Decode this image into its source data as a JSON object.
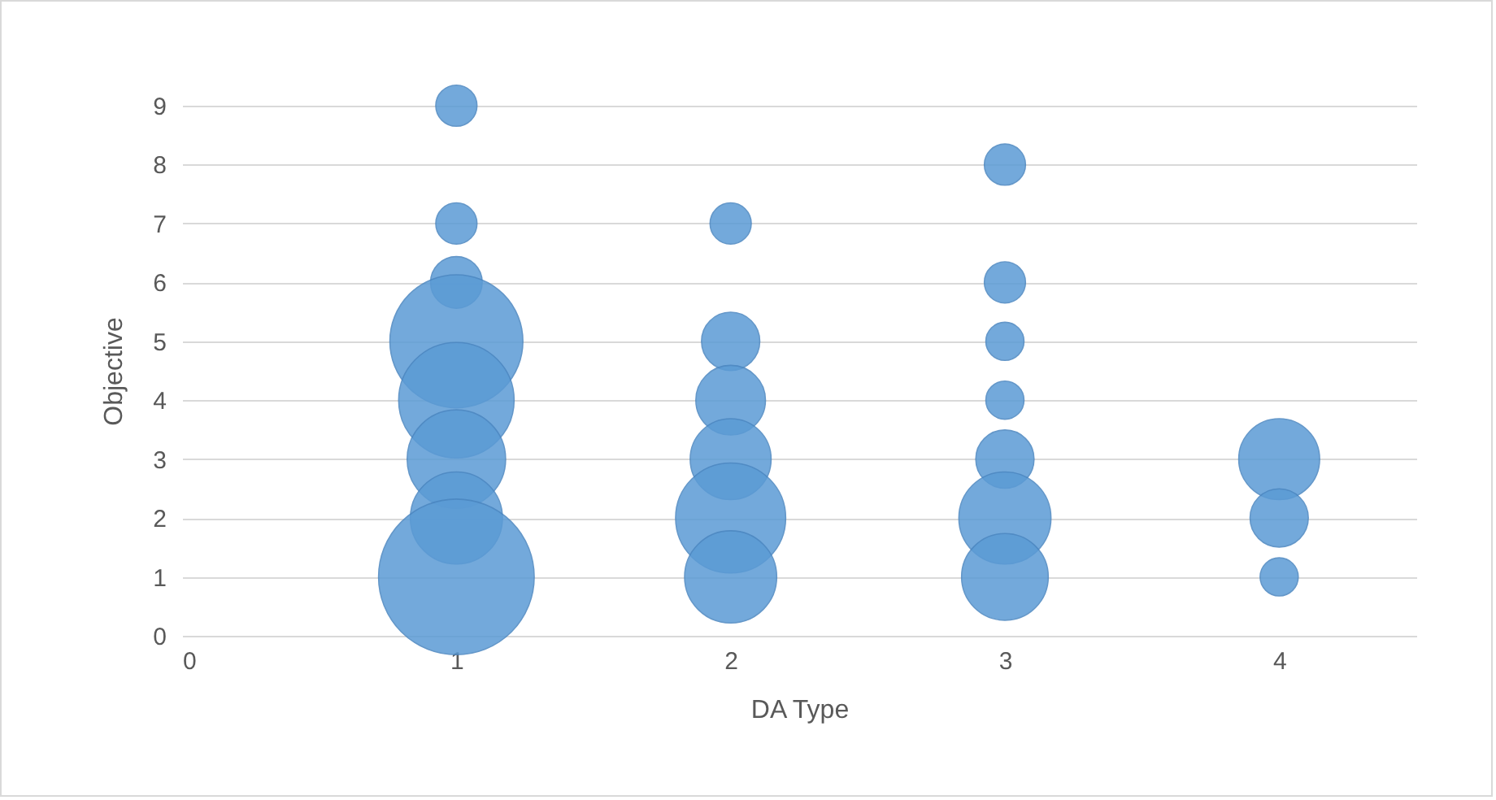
{
  "chart_data": {
    "type": "bubble",
    "xlabel": "DA Type",
    "ylabel": "Objective",
    "x": [
      1,
      1,
      1,
      1,
      1,
      1,
      1,
      1,
      2,
      2,
      2,
      2,
      2,
      2,
      3,
      3,
      3,
      3,
      3,
      3,
      3,
      4,
      4,
      4
    ],
    "values": [
      9,
      7,
      6,
      5,
      4,
      3,
      2,
      1,
      7,
      5,
      4,
      3,
      2,
      1,
      8,
      6,
      5,
      4,
      3,
      2,
      1,
      3,
      2,
      1
    ],
    "sizes": [
      0.07,
      0.07,
      0.11,
      0.73,
      0.55,
      0.4,
      0.35,
      1,
      0.07,
      0.14,
      0.2,
      0.27,
      0.5,
      0.35,
      0.07,
      0.07,
      0.06,
      0.06,
      0.14,
      0.35,
      0.31,
      0.27,
      0.14,
      0.06
    ],
    "color": "#5b9bd5",
    "xlim": [
      0,
      4.5
    ],
    "xticks": [
      0,
      1,
      2,
      3,
      4
    ],
    "ylim": [
      0,
      9
    ],
    "yticks": [
      0,
      1,
      2,
      3,
      4,
      5,
      6,
      7,
      8,
      9
    ],
    "grid": "y",
    "legend": false
  }
}
